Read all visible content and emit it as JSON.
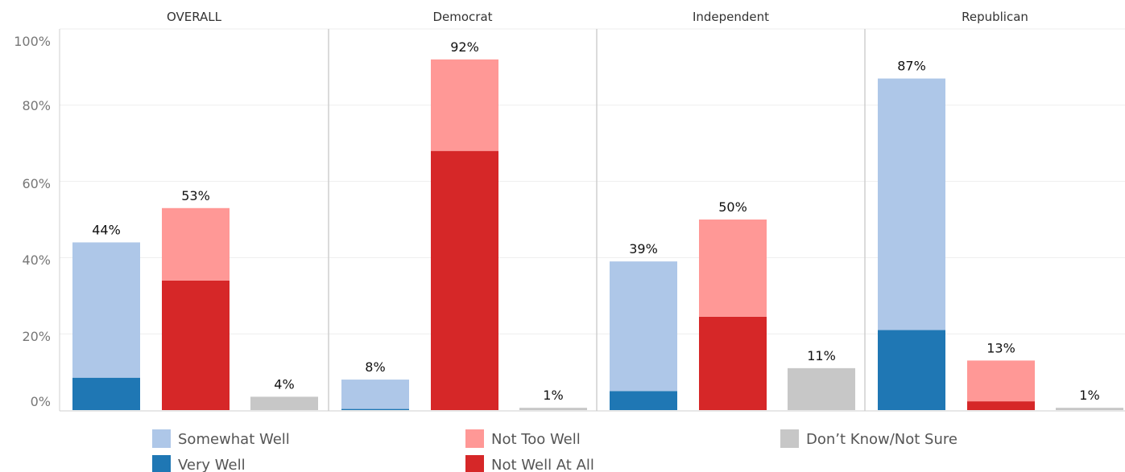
{
  "chart_data": {
    "type": "bar",
    "stacked": true,
    "panels": [
      "OVERALL",
      "Democrat",
      "Independent",
      "Republican"
    ],
    "y_ticks": [
      "0%",
      "20%",
      "40%",
      "60%",
      "80%",
      "100%"
    ],
    "ylim": [
      0,
      100
    ],
    "grid": true,
    "groups": [
      {
        "panel": "OVERALL",
        "bars": [
          {
            "key": "well",
            "total": 44,
            "total_label": "44%",
            "segments": [
              8.5,
              35.5
            ]
          },
          {
            "key": "not_well",
            "total": 53,
            "total_label": "53%",
            "segments": [
              34,
              19
            ]
          },
          {
            "key": "unsure",
            "total": 4,
            "total_label": "4%",
            "segments": [
              3.5
            ]
          }
        ]
      },
      {
        "panel": "Democrat",
        "bars": [
          {
            "key": "well",
            "total": 8,
            "total_label": "8%",
            "segments": [
              0.3,
              7.7
            ]
          },
          {
            "key": "not_well",
            "total": 92,
            "total_label": "92%",
            "segments": [
              68,
              24
            ]
          },
          {
            "key": "unsure",
            "total": 1,
            "total_label": "1%",
            "segments": [
              0.6
            ]
          }
        ]
      },
      {
        "panel": "Independent",
        "bars": [
          {
            "key": "well",
            "total": 39,
            "total_label": "39%",
            "segments": [
              5,
              34
            ]
          },
          {
            "key": "not_well",
            "total": 50,
            "total_label": "50%",
            "segments": [
              24.5,
              25.5
            ]
          },
          {
            "key": "unsure",
            "total": 11,
            "total_label": "11%",
            "segments": [
              11
            ]
          }
        ]
      },
      {
        "panel": "Republican",
        "bars": [
          {
            "key": "well",
            "total": 87,
            "total_label": "87%",
            "segments": [
              21,
              66
            ]
          },
          {
            "key": "not_well",
            "total": 13,
            "total_label": "13%",
            "segments": [
              2.3,
              10.7
            ]
          },
          {
            "key": "unsure",
            "total": 1,
            "total_label": "1%",
            "segments": [
              0.6
            ]
          }
        ]
      }
    ],
    "series": [
      {
        "key": "very_well",
        "name": "Very Well",
        "color": "#1f77b4"
      },
      {
        "key": "somewhat_well",
        "name": "Somewhat Well",
        "color": "#aec7e8"
      },
      {
        "key": "not_well_at_all",
        "name": "Not Well At All",
        "color": "#d62728"
      },
      {
        "key": "not_too_well",
        "name": "Not Too Well",
        "color": "#ff9896"
      },
      {
        "key": "dont_know",
        "name": "Don’t Know/Not Sure",
        "color": "#c7c7c7"
      }
    ],
    "bar_series": {
      "well": [
        "very_well",
        "somewhat_well"
      ],
      "not_well": [
        "not_well_at_all",
        "not_too_well"
      ],
      "unsure": [
        "dont_know"
      ]
    },
    "legend": {
      "position": "bottom",
      "rows": [
        [
          "somewhat_well",
          "not_too_well",
          "dont_know"
        ],
        [
          "very_well",
          "not_well_at_all"
        ]
      ]
    }
  }
}
